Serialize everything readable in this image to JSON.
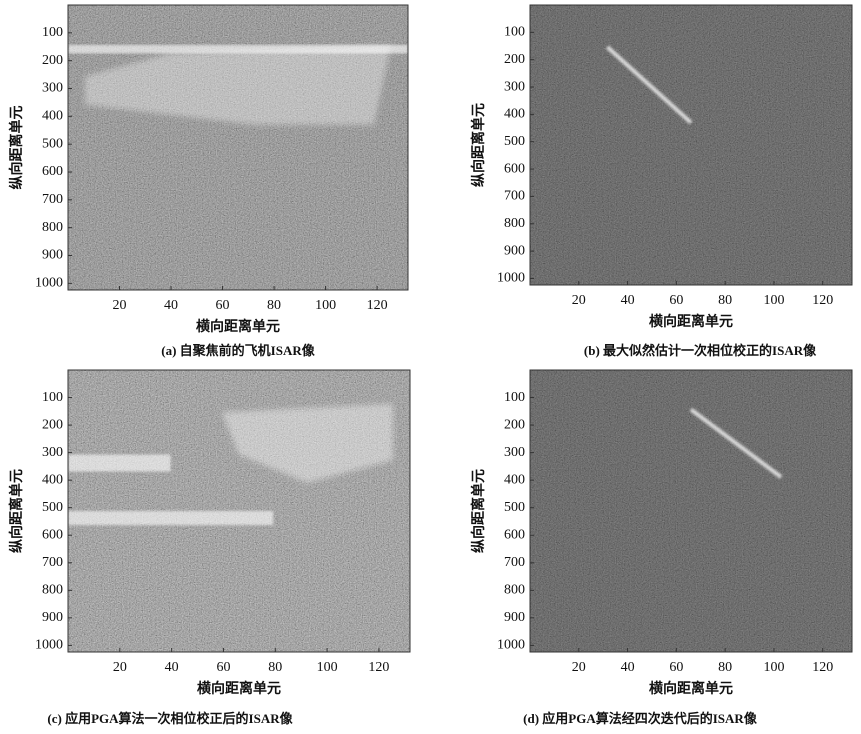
{
  "chart_data": [
    {
      "type": "image",
      "ylabel": "纵向距离单元",
      "xlabel": "横向距离单元",
      "caption": "(a) 自聚焦前的飞机ISAR像",
      "xlim": [
        0,
        132
      ],
      "ylim": [
        0,
        1024
      ],
      "y_inverted": true,
      "xticks": [
        20,
        40,
        60,
        80,
        100,
        120
      ],
      "yticks": [
        100,
        200,
        300,
        400,
        500,
        600,
        700,
        800,
        900,
        1000
      ]
    },
    {
      "type": "image",
      "ylabel": "纵向距离单元",
      "xlabel": "横向距离单元",
      "caption": "(b) 最大似然估计一次相位校正的ISAR像",
      "xlim": [
        0,
        132
      ],
      "ylim": [
        0,
        1024
      ],
      "y_inverted": true,
      "xticks": [
        20,
        40,
        60,
        80,
        100,
        120
      ],
      "yticks": [
        100,
        200,
        300,
        400,
        500,
        600,
        700,
        800,
        900,
        1000
      ]
    },
    {
      "type": "image",
      "ylabel": "纵向距离单元",
      "xlabel": "横向距离单元",
      "caption": "(c) 应用PGA算法一次相位校正后的ISAR像",
      "xlim": [
        0,
        132
      ],
      "ylim": [
        0,
        1024
      ],
      "y_inverted": true,
      "xticks": [
        20,
        40,
        60,
        80,
        100,
        120
      ],
      "yticks": [
        100,
        200,
        300,
        400,
        500,
        600,
        700,
        800,
        900,
        1000
      ]
    },
    {
      "type": "image",
      "ylabel": "纵向距离单元",
      "xlabel": "横向距离单元",
      "caption": "(d) 应用PGA算法经四次迭代后的ISAR像",
      "xlim": [
        0,
        132
      ],
      "ylim": [
        0,
        1024
      ],
      "y_inverted": true,
      "xticks": [
        20,
        40,
        60,
        80,
        100,
        120
      ],
      "yticks": [
        100,
        200,
        300,
        400,
        500,
        600,
        700,
        800,
        900,
        1000
      ]
    }
  ]
}
